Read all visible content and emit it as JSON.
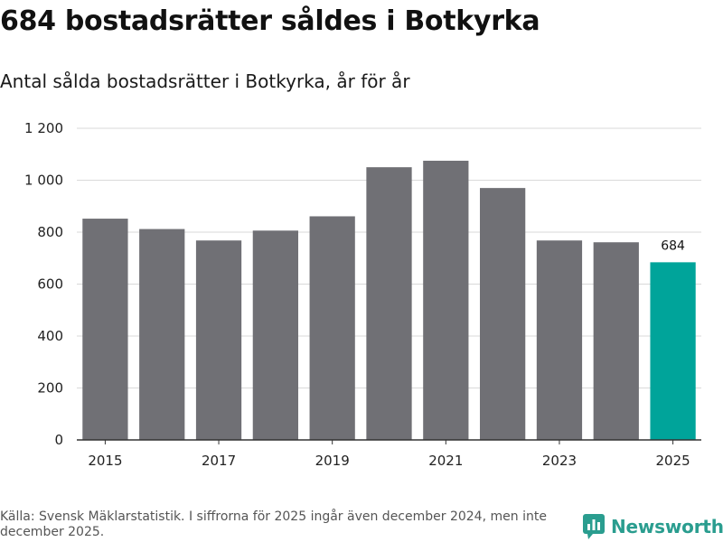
{
  "header": {
    "title": "684 bostadsrätter såldes i Botkyrka",
    "subtitle": "Antal sålda bostadsrätter i Botkyrka, år för år"
  },
  "chart_data": {
    "type": "bar",
    "categories": [
      "2015",
      "2016",
      "2017",
      "2018",
      "2019",
      "2020",
      "2021",
      "2022",
      "2023",
      "2024",
      "2025"
    ],
    "values": [
      852,
      812,
      768,
      806,
      861,
      1050,
      1075,
      970,
      768,
      761,
      684
    ],
    "x_tick_labels": [
      "2015",
      "2017",
      "2019",
      "2021",
      "2023",
      "2025"
    ],
    "y_tick_labels": [
      "0",
      "200",
      "400",
      "600",
      "800",
      "1 000",
      "1 200"
    ],
    "y_ticks": [
      0,
      200,
      400,
      600,
      800,
      1000,
      1200
    ],
    "ylim": [
      0,
      1200
    ],
    "xlabel": "",
    "ylabel": "",
    "grid": true,
    "bar_color": "#707075",
    "highlight_color": "#00a49a",
    "highlight_category": "2025",
    "data_labels": [
      {
        "category": "2025",
        "text": "684"
      }
    ]
  },
  "footer": {
    "source": "Källa: Svensk Mäklarstatistik. I siffrorna för 2025 ingår även december 2024, men inte december 2025.",
    "brand": "Newsworthy",
    "brand_icon": "newsworthy-logo-icon",
    "brand_color": "#2a9d8f"
  }
}
